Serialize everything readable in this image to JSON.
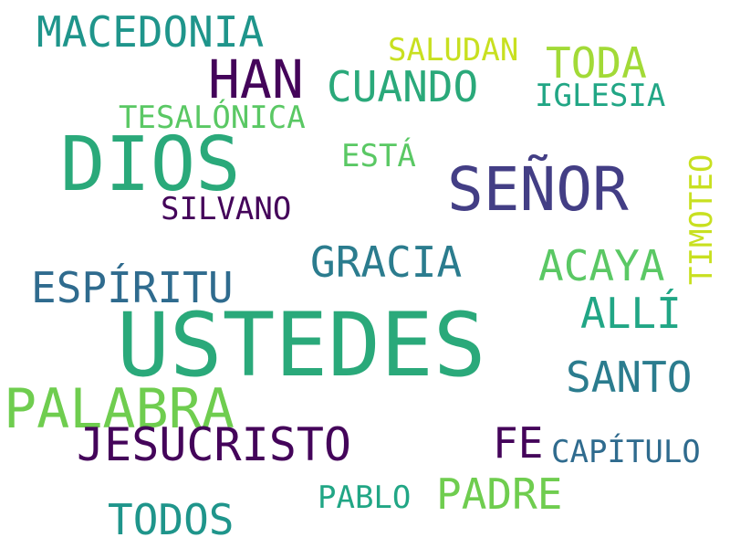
{
  "words": [
    {
      "text": "USTEDES",
      "color": "#2aa97a"
    },
    {
      "text": "DIOS",
      "color": "#2aa97a"
    },
    {
      "text": "SEÑOR",
      "color": "#433e85"
    },
    {
      "text": "PALABRA",
      "color": "#6fcd4f"
    },
    {
      "text": "HAN",
      "color": "#44045a"
    },
    {
      "text": "JESUCRISTO",
      "color": "#44045a"
    },
    {
      "text": "MACEDONIA",
      "color": "#1f958b"
    },
    {
      "text": "GRACIA",
      "color": "#2b7c8e"
    },
    {
      "text": "ESPÍRITU",
      "color": "#2f6b8e"
    },
    {
      "text": "CUANDO",
      "color": "#2aa97a"
    },
    {
      "text": "ACAYA",
      "color": "#5ac864"
    },
    {
      "text": "SANTO",
      "color": "#2b7c8e"
    },
    {
      "text": "TODOS",
      "color": "#1f958b"
    },
    {
      "text": "PADRE",
      "color": "#6fcd4f"
    },
    {
      "text": "TODA",
      "color": "#a2da37"
    },
    {
      "text": "ALLÍ",
      "color": "#21a685"
    },
    {
      "text": "FE",
      "color": "#44045a"
    },
    {
      "text": "TESALÓNICA",
      "color": "#5ac864"
    },
    {
      "text": "SALUDAN",
      "color": "#c8e020"
    },
    {
      "text": "IGLESIA",
      "color": "#21a685"
    },
    {
      "text": "SILVANO",
      "color": "#44045a"
    },
    {
      "text": "ESTÁ",
      "color": "#5ac864"
    },
    {
      "text": "CAPÍTULO",
      "color": "#2f6b8e"
    },
    {
      "text": "PABLO",
      "color": "#21a685"
    },
    {
      "text": "TIMOTEO",
      "color": "#c8e020"
    }
  ]
}
